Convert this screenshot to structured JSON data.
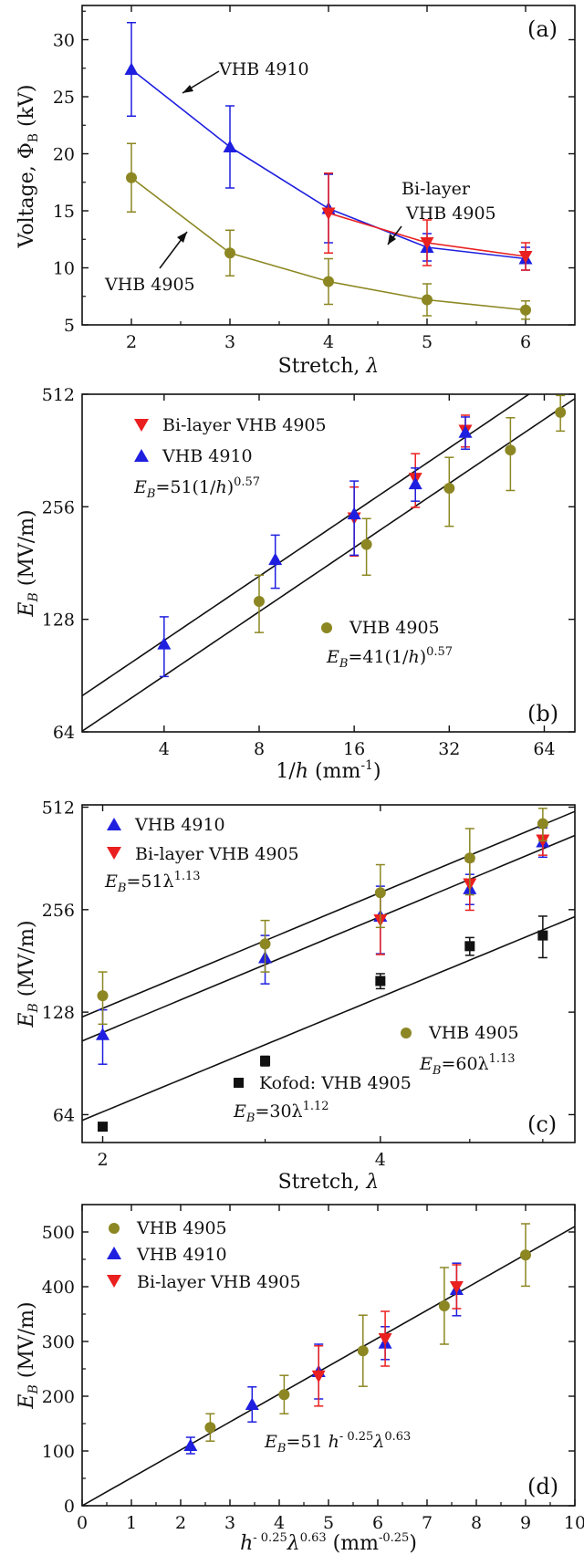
{
  "chart_data": [
    {
      "panel": "(a)",
      "type": "line",
      "xlabel": "Stretch, λ",
      "ylabel": "Voltage, Φ_B (kV)",
      "xlim": [
        1.5,
        6.5
      ],
      "ylim": [
        5,
        33
      ],
      "xticks": [
        2,
        3,
        4,
        5,
        6
      ],
      "yticks": [
        5,
        10,
        15,
        20,
        25,
        30
      ],
      "series": [
        {
          "name": "VHB 4910",
          "color": "#1f1fe0",
          "marker": "triangle-up",
          "x": [
            2,
            3,
            4,
            5,
            6
          ],
          "y": [
            27.4,
            20.6,
            15.2,
            11.8,
            10.8
          ],
          "err": [
            4.1,
            3.6,
            3.0,
            1.2,
            1.0
          ]
        },
        {
          "name": "Bi-layer VHB 4905",
          "color": "#ea1f1f",
          "marker": "triangle-down",
          "x": [
            4,
            5,
            6
          ],
          "y": [
            14.8,
            12.2,
            11.0
          ],
          "err": [
            3.5,
            2.0,
            1.2
          ]
        },
        {
          "name": "VHB 4905",
          "color": "#8c8722",
          "marker": "circle",
          "x": [
            2,
            3,
            4,
            5,
            6
          ],
          "y": [
            17.9,
            11.3,
            8.8,
            7.2,
            6.3
          ],
          "err": [
            3.0,
            2.0,
            2.0,
            1.4,
            0.8
          ]
        }
      ],
      "annotations": [
        {
          "text": "VHB 4910"
        },
        {
          "text": "Bi-layer"
        },
        {
          "text": "VHB 4905"
        },
        {
          "text": "VHB 4905"
        }
      ]
    },
    {
      "panel": "(b)",
      "type": "scatter",
      "xscale": "log2",
      "yscale": "log2",
      "xlabel": "1/h (mm⁻¹)",
      "ylabel": "E_B (MV/m)",
      "xlim": [
        2.2,
        80
      ],
      "ylim": [
        64,
        512
      ],
      "xticks": [
        4,
        8,
        16,
        32,
        64
      ],
      "yticks": [
        64,
        128,
        256,
        512
      ],
      "series": [
        {
          "name": "Bi-layer VHB 4905",
          "color": "#ea1f1f",
          "marker": "triangle-down",
          "x": [
            16,
            25,
            36
          ],
          "y": [
            239,
            305,
            410
          ],
          "err": [
            50,
            50,
            40
          ]
        },
        {
          "name": "VHB 4910",
          "color": "#1f1fe0",
          "marker": "triangle-up",
          "x": [
            4,
            9,
            16,
            25,
            36
          ],
          "y": [
            110,
            185,
            245,
            295,
            405
          ],
          "err": [
            20,
            30,
            55,
            30,
            40
          ]
        },
        {
          "name": "VHB 4905",
          "color": "#8c8722",
          "marker": "circle",
          "x": [
            8,
            17.5,
            32,
            50,
            72
          ],
          "y": [
            143,
            203,
            287,
            363,
            458
          ],
          "err": [
            25,
            35,
            60,
            80,
            50
          ]
        }
      ],
      "fits": [
        {
          "label": "E_B=51(1/h)^0.57",
          "a": 51,
          "b": 0.57
        },
        {
          "label": "E_B=41(1/h)^0.57",
          "a": 41,
          "b": 0.57
        }
      ]
    },
    {
      "panel": "(c)",
      "type": "scatter",
      "xscale": "log2",
      "yscale": "log2",
      "xlabel": "Stretch, λ",
      "ylabel": "E_B (MV/m)",
      "xlim": [
        1.9,
        6.5
      ],
      "ylim": [
        53,
        520
      ],
      "xticks": [
        2,
        4
      ],
      "yticks": [
        64,
        128,
        256,
        512
      ],
      "series": [
        {
          "name": "VHB 4910",
          "color": "#1f1fe0",
          "marker": "triangle-up",
          "x": [
            2,
            3,
            4,
            5,
            6
          ],
          "y": [
            110,
            185,
            245,
            295,
            405
          ],
          "err": [
            20,
            30,
            55,
            30,
            40
          ]
        },
        {
          "name": "Bi-layer VHB 4905",
          "color": "#ea1f1f",
          "marker": "triangle-down",
          "x": [
            4,
            5,
            6
          ],
          "y": [
            239,
            305,
            410
          ],
          "err": [
            50,
            50,
            40
          ]
        },
        {
          "name": "VHB 4905",
          "color": "#8c8722",
          "marker": "circle",
          "x": [
            2,
            3,
            4,
            5,
            6
          ],
          "y": [
            143,
            203,
            287,
            363,
            458
          ],
          "err": [
            25,
            35,
            60,
            80,
            50
          ]
        },
        {
          "name": "Kofod: VHB 4905",
          "color": "#111111",
          "marker": "square",
          "x": [
            2,
            3,
            4,
            5,
            6
          ],
          "y": [
            59,
            92,
            158,
            200,
            215
          ],
          "err": [
            0,
            3,
            8,
            12,
            30
          ]
        }
      ],
      "fits": [
        {
          "label": "E_B=60λ^1.13",
          "a": 60,
          "b": 1.13
        },
        {
          "label": "E_B=51λ^1.13",
          "a": 51,
          "b": 1.13
        },
        {
          "label": "E_B=30λ^1.12",
          "a": 30,
          "b": 1.12
        }
      ]
    },
    {
      "panel": "(d)",
      "type": "scatter",
      "xlabel": "h^-0.25 λ^0.63 (mm^-0.25)",
      "ylabel": "E_B (MV/m)",
      "xlim": [
        0,
        10
      ],
      "ylim": [
        0,
        550
      ],
      "xticks": [
        0,
        1,
        2,
        3,
        4,
        5,
        6,
        7,
        8,
        9,
        10
      ],
      "yticks": [
        0,
        100,
        200,
        300,
        400,
        500
      ],
      "series": [
        {
          "name": "VHB 4905",
          "color": "#8c8722",
          "marker": "circle",
          "x": [
            2.6,
            4.1,
            5.7,
            7.35,
            9.0
          ],
          "y": [
            143,
            203,
            283,
            365,
            458
          ],
          "err": [
            25,
            35,
            65,
            70,
            57
          ]
        },
        {
          "name": "VHB 4910",
          "color": "#1f1fe0",
          "marker": "triangle-up",
          "x": [
            2.2,
            3.45,
            4.8,
            6.15,
            7.6
          ],
          "y": [
            110,
            185,
            245,
            297,
            395
          ],
          "err": [
            15,
            32,
            50,
            30,
            48
          ]
        },
        {
          "name": "Bi-layer VHB 4905",
          "color": "#ea1f1f",
          "marker": "triangle-down",
          "x": [
            4.8,
            6.15,
            7.6
          ],
          "y": [
            237,
            305,
            400
          ],
          "err": [
            55,
            50,
            40
          ]
        }
      ],
      "fits": [
        {
          "label": "E_B=51 h^-0.25 λ^0.63",
          "a": 51
        }
      ]
    }
  ],
  "labels": {
    "a": {
      "panel": "(a)",
      "ylabel_main": "Voltage, Φ",
      "ylabel_sub": "B",
      "ylabel_tail": " (kV)",
      "xlabel_main": "Stretch, ",
      "xlabel_sym": "λ",
      "ann_4910": "VHB 4910",
      "ann_bi1": "Bi-layer",
      "ann_bi2": "VHB 4905",
      "ann_4905": "VHB 4905"
    },
    "b": {
      "panel": "(b)",
      "ylabel_main": "E",
      "ylabel_sub": "B",
      "ylabel_tail": " (MV/m)",
      "xlabel_main": "1/",
      "xlabel_sym": "h",
      "xlabel_tail": " (mm",
      "xlabel_sup": "-1",
      "xlabel_end": ")",
      "leg1": "Bi-layer VHB 4905",
      "leg2": "VHB 4910",
      "leg3": "VHB 4905",
      "eq1_e": "E",
      "eq1_sub": "B",
      "eq1_rest": "=51(1/",
      "eq1_h": "h",
      "eq1_close": ")",
      "eq1_sup": "0.57",
      "eq2_e": "E",
      "eq2_sub": "B",
      "eq2_rest": "=41(1/",
      "eq2_h": "h",
      "eq2_close": ")",
      "eq2_sup": "0.57"
    },
    "c": {
      "panel": "(c)",
      "ylabel_main": "E",
      "ylabel_sub": "B",
      "ylabel_tail": " (MV/m)",
      "xlabel_main": "Stretch, ",
      "xlabel_sym": "λ",
      "leg1": "VHB 4910",
      "leg2": "Bi-layer VHB 4905",
      "leg3": "VHB 4905",
      "leg4": "Kofod: VHB 4905",
      "eq1_e": "E",
      "eq1_sub": "B",
      "eq1_rest": "=51λ",
      "eq1_sup": "1.13",
      "eq2_e": "E",
      "eq2_sub": "B",
      "eq2_rest": "=60λ",
      "eq2_sup": "1.13",
      "eq3_e": "E",
      "eq3_sub": "B",
      "eq3_rest": "=30λ",
      "eq3_sup": "1.12"
    },
    "d": {
      "panel": "(d)",
      "ylabel_main": "E",
      "ylabel_sub": "B",
      "ylabel_tail": " (MV/m)",
      "xlabel_h": "h",
      "xlabel_sup1": "- 0.25",
      "xlabel_lam": "λ",
      "xlabel_sup2": "0.63",
      "xlabel_tail": " (mm",
      "xlabel_sup3": "-0.25",
      "xlabel_end": ")",
      "leg1": "VHB 4905",
      "leg2": "VHB 4910",
      "leg3": "Bi-layer VHB 4905",
      "eq_e": "E",
      "eq_sub": "B",
      "eq_rest": "=51 ",
      "eq_h": "h",
      "eq_sup1": "- 0.25",
      "eq_lam": "λ",
      "eq_sup2": "0.63"
    }
  },
  "colors": {
    "blue": "#1f1fe0",
    "red": "#ea1f1f",
    "olive": "#8c8722",
    "black": "#111111"
  }
}
